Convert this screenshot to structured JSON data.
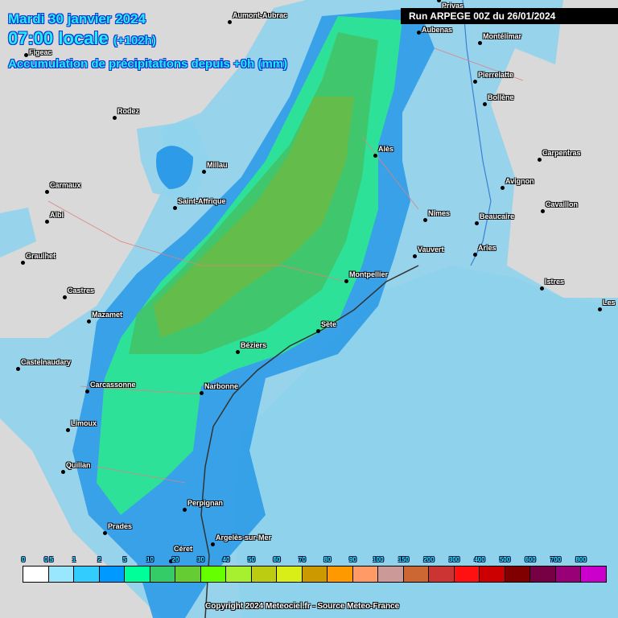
{
  "header": {
    "date": "Mardi 30 janvier 2024",
    "time": "07:00 locale",
    "offset": "(+102h)",
    "subtitle": "Accumulation de précipitations depuis +0h (mm)",
    "run": "Run ARPEGE 00Z du 26/01/2024"
  },
  "cities": [
    "Privas",
    "Aumont-Aubrac",
    "Aubenas",
    "Montélimar",
    "Figeac",
    "Pierrelatte",
    "Bollène",
    "Rodez",
    "Alès",
    "Carpentras",
    "Millau",
    "Carmaux",
    "Avignon",
    "Saint-Affrique",
    "Cavaillon",
    "Albi",
    "Nîmes",
    "Beaucaire",
    "Graulhet",
    "Arles",
    "Vauvert",
    "Montpellier",
    "Castres",
    "Istres",
    "Les",
    "Mazamet",
    "Sète",
    "Béziers",
    "Castelnaudary",
    "Carcassonne",
    "Narbonne",
    "Limoux",
    "Quillan",
    "Perpignan",
    "Prades",
    "Argelès-sur-Mer",
    "Céret"
  ],
  "legend": {
    "labels": [
      "0",
      "0.5",
      "1",
      "2",
      "5",
      "10",
      "20",
      "30",
      "40",
      "50",
      "60",
      "70",
      "80",
      "90",
      "100",
      "150",
      "200",
      "300",
      "400",
      "500",
      "600",
      "700",
      "800"
    ],
    "colors": [
      "#ffffff",
      "#99e6ff",
      "#33ccff",
      "#0099ff",
      "#00ff99",
      "#33cc66",
      "#66cc33",
      "#66ff00",
      "#a6f02f",
      "#bbcc11",
      "#d9ee16",
      "#cc9900",
      "#ff9900",
      "#ff9966",
      "#cc9999",
      "#cc6633",
      "#cc3333",
      "#ff1111",
      "#cc0000",
      "#800000",
      "#770044",
      "#990077",
      "#cc00cc"
    ]
  },
  "colors": {
    "sea": "#8fcde0",
    "land": "#d9d9d9",
    "light": "#8fd3ec",
    "mid": "#2d9be8",
    "green1": "#2ee88f",
    "green2": "#42c468",
    "green3": "#6bbb45"
  },
  "copyright": "Copyright 2024 Meteociel.fr - Source Meteo-France"
}
